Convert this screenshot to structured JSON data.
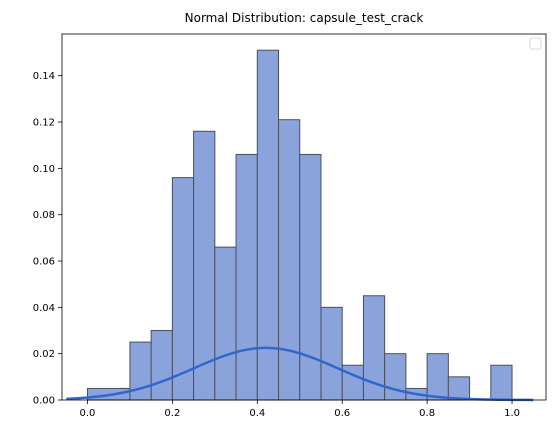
{
  "chart_data": {
    "type": "bar",
    "title": "Normal Distribution: capsule_test_crack",
    "xlabel": "",
    "ylabel": "",
    "xlim": [
      -0.06,
      1.08
    ],
    "ylim": [
      0,
      0.158
    ],
    "grid": false,
    "legend": {
      "placement": "top-right",
      "entries": []
    },
    "x_ticks": [
      "0.0",
      "0.2",
      "0.4",
      "0.6",
      "0.8",
      "1.0"
    ],
    "x_tick_values": [
      0.0,
      0.2,
      0.4,
      0.6,
      0.8,
      1.0
    ],
    "y_ticks": [
      "0.00",
      "0.02",
      "0.04",
      "0.06",
      "0.08",
      "0.10",
      "0.12",
      "0.14"
    ],
    "y_tick_values": [
      0.0,
      0.02,
      0.04,
      0.06,
      0.08,
      0.1,
      0.12,
      0.14
    ],
    "histogram": {
      "bin_edges": [
        0.0,
        0.1,
        0.15,
        0.2,
        0.25,
        0.3,
        0.35,
        0.4,
        0.45,
        0.5,
        0.55,
        0.6,
        0.65,
        0.7,
        0.75,
        0.8,
        0.85,
        0.9,
        0.95,
        1.0
      ],
      "values": [
        0.005,
        0.025,
        0.03,
        0.096,
        0.116,
        0.066,
        0.106,
        0.151,
        0.121,
        0.106,
        0.04,
        0.015,
        0.045,
        0.02,
        0.005,
        0.02,
        0.01,
        0.0,
        0.015
      ],
      "fill_color": "#8aa4db",
      "edge_color": "#4a4f5e"
    },
    "curve": {
      "type": "line",
      "mean": 0.42,
      "peak": 0.0225,
      "std": 0.17,
      "x_range": [
        -0.05,
        1.05
      ],
      "color": "#3366cc"
    }
  }
}
